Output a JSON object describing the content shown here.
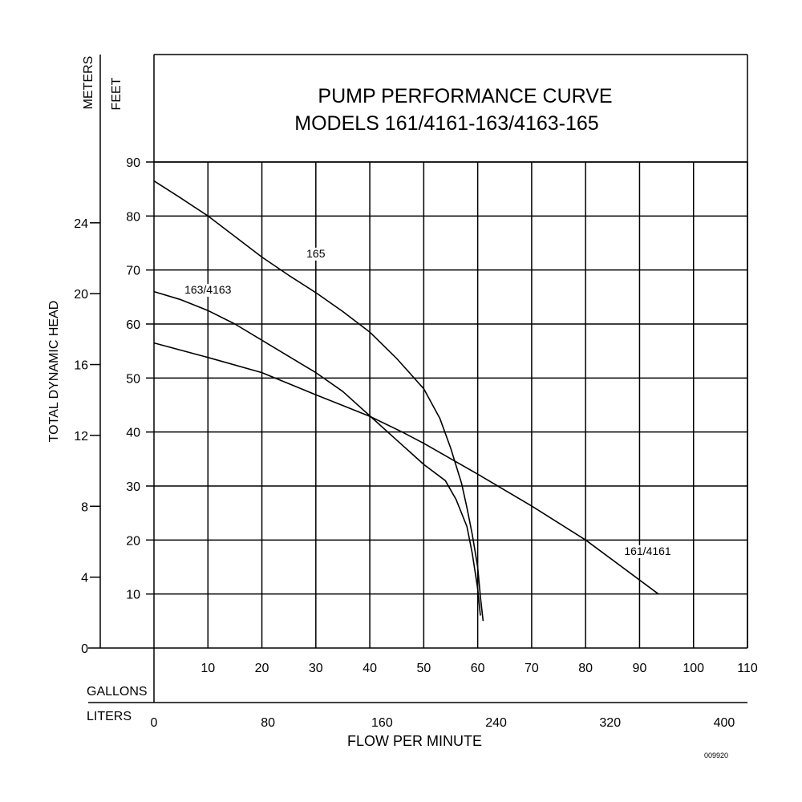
{
  "chart_data": {
    "type": "line",
    "title": "PUMP PERFORMANCE CURVE",
    "subtitle": "MODELS 161/4161-163/4163-165",
    "xlabel": "FLOW PER MINUTE",
    "ylabel": "TOTAL DYNAMIC HEAD",
    "x_unit_primary": "GALLONS",
    "x_unit_secondary": "LITERS",
    "y_unit_primary": "FEET",
    "y_unit_secondary": "METERS",
    "xlim": [
      0,
      110
    ],
    "ylim": [
      0,
      90
    ],
    "x_ticks": [
      10,
      20,
      30,
      40,
      50,
      60,
      70,
      80,
      90,
      100,
      110
    ],
    "y_ticks": [
      10,
      20,
      30,
      40,
      50,
      60,
      70,
      80,
      90
    ],
    "liters_ticks": [
      0,
      80,
      160,
      240,
      320,
      400
    ],
    "meters_ticks": [
      0,
      4,
      8,
      12,
      16,
      20,
      24
    ],
    "grid": true,
    "series": [
      {
        "name": "165",
        "label_at": [
          30,
          72.5
        ],
        "x": [
          0,
          5,
          10,
          15,
          20,
          25,
          30,
          35,
          40,
          45,
          50,
          53,
          55,
          57,
          58,
          59,
          60,
          60.5,
          61
        ],
        "y": [
          86.5,
          83.3,
          80,
          76.2,
          72.4,
          69,
          65.8,
          62.3,
          58.5,
          53.6,
          48,
          42.5,
          37,
          30.5,
          26,
          21,
          15,
          9.5,
          5
        ]
      },
      {
        "name": "163/4163",
        "label_at": [
          10,
          65.8
        ],
        "x": [
          0,
          5,
          10,
          15,
          20,
          25,
          30,
          35,
          40,
          45,
          50,
          54,
          56,
          58,
          59,
          60,
          60.5
        ],
        "y": [
          66,
          64.5,
          62.5,
          60,
          57,
          54,
          51,
          47.5,
          43,
          38.5,
          34,
          31,
          27.5,
          22.5,
          17.5,
          11,
          6
        ]
      },
      {
        "name": "161/4161",
        "label_at": [
          91.5,
          17.4
        ],
        "x": [
          0,
          10,
          20,
          30,
          40,
          46,
          50,
          60,
          70,
          80,
          93.5
        ],
        "y": [
          56.5,
          53.8,
          51,
          46.9,
          42.9,
          40,
          37.9,
          32.2,
          26.3,
          20,
          10
        ]
      }
    ],
    "annotation": "009920"
  }
}
